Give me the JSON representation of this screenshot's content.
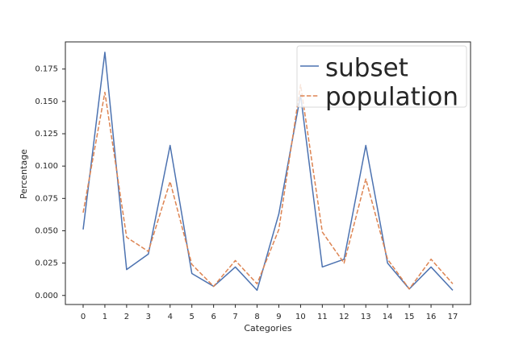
{
  "chart_data": {
    "type": "line",
    "xlabel": "Categories",
    "ylabel": "Percentage",
    "categories": [
      "0",
      "1",
      "2",
      "3",
      "4",
      "5",
      "6",
      "7",
      "8",
      "9",
      "10",
      "11",
      "12",
      "13",
      "14",
      "15",
      "16",
      "17"
    ],
    "ylim": [
      -0.007,
      0.196
    ],
    "yticks": [
      0.0,
      0.025,
      0.05,
      0.075,
      0.1,
      0.125,
      0.15,
      0.175
    ],
    "ytick_labels": [
      "0.000",
      "0.025",
      "0.050",
      "0.075",
      "0.100",
      "0.125",
      "0.150",
      "0.175"
    ],
    "grid": false,
    "legend_position": "top-right",
    "series": [
      {
        "name": "subset",
        "color": "#4c72b0",
        "dash": "solid",
        "values": [
          0.051,
          0.188,
          0.02,
          0.032,
          0.116,
          0.017,
          0.007,
          0.022,
          0.004,
          0.063,
          0.155,
          0.022,
          0.028,
          0.116,
          0.025,
          0.005,
          0.022,
          0.004
        ]
      },
      {
        "name": "population",
        "color": "#dd8452",
        "dash": "dashed",
        "values": [
          0.064,
          0.157,
          0.045,
          0.034,
          0.088,
          0.024,
          0.007,
          0.027,
          0.009,
          0.051,
          0.163,
          0.049,
          0.025,
          0.09,
          0.028,
          0.005,
          0.028,
          0.009
        ]
      }
    ]
  }
}
